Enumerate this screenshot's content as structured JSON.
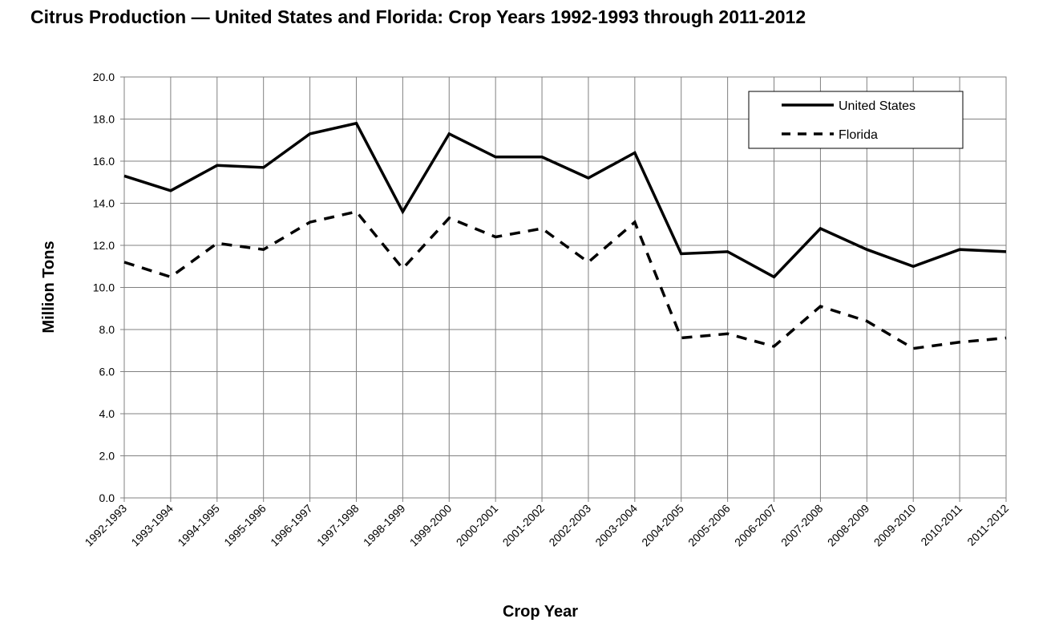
{
  "chart_data": {
    "type": "line",
    "title": "Citrus Production — United States and Florida:  Crop Years 1992-1993 through 2011-2012",
    "xlabel": "Crop Year",
    "ylabel": "Million Tons",
    "ylim": [
      0,
      20
    ],
    "yticks": [
      "0.0",
      "2.0",
      "4.0",
      "6.0",
      "8.0",
      "10.0",
      "12.0",
      "14.0",
      "16.0",
      "18.0",
      "20.0"
    ],
    "grid": true,
    "legend_position": "top-right",
    "categories": [
      "1992-1993",
      "1993-1994",
      "1994-1995",
      "1995-1996",
      "1996-1997",
      "1997-1998",
      "1998-1999",
      "1999-2000",
      "2000-2001",
      "2001-2002",
      "2002-2003",
      "2003-2004",
      "2004-2005",
      "2005-2006",
      "2006-2007",
      "2007-2008",
      "2008-2009",
      "2009-2010",
      "2010-2011",
      "2011-2012"
    ],
    "series": [
      {
        "name": "United States",
        "style": "solid",
        "color": "#000000",
        "values": [
          15.3,
          14.6,
          15.8,
          15.7,
          17.3,
          17.8,
          13.6,
          17.3,
          16.2,
          16.2,
          15.2,
          16.4,
          11.6,
          11.7,
          10.5,
          12.8,
          11.8,
          11.0,
          11.8,
          11.7
        ]
      },
      {
        "name": "Florida",
        "style": "dashed",
        "color": "#000000",
        "values": [
          11.2,
          10.5,
          12.1,
          11.8,
          13.1,
          13.6,
          10.9,
          13.3,
          12.4,
          12.8,
          11.2,
          13.1,
          7.6,
          7.8,
          7.2,
          9.1,
          8.4,
          7.1,
          7.4,
          7.6
        ]
      }
    ]
  }
}
